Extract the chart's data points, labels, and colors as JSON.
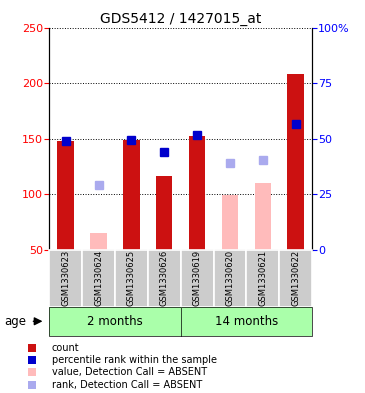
{
  "title": "GDS5412 / 1427015_at",
  "samples": [
    "GSM1330623",
    "GSM1330624",
    "GSM1330625",
    "GSM1330626",
    "GSM1330619",
    "GSM1330620",
    "GSM1330621",
    "GSM1330622"
  ],
  "groups": [
    {
      "label": "2 months",
      "span": [
        0,
        3
      ]
    },
    {
      "label": "14 months",
      "span": [
        4,
        7
      ]
    }
  ],
  "count_values": [
    148,
    null,
    149,
    116,
    152,
    null,
    null,
    208
  ],
  "count_absent_values": [
    null,
    65,
    null,
    null,
    null,
    99,
    110,
    null
  ],
  "rank_values": [
    148,
    null,
    149,
    138,
    153,
    null,
    null,
    163
  ],
  "rank_absent_values": [
    null,
    108,
    null,
    null,
    null,
    128,
    131,
    null
  ],
  "ylim_left": [
    50,
    250
  ],
  "ylim_right": [
    0,
    100
  ],
  "yticks_left": [
    50,
    100,
    150,
    200,
    250
  ],
  "yticks_right": [
    0,
    25,
    50,
    75,
    100
  ],
  "ytick_labels_right": [
    "0",
    "25",
    "50",
    "75",
    "100%"
  ],
  "bar_color_present": "#cc1111",
  "bar_color_absent": "#ffbbbb",
  "rank_color_present": "#0000cc",
  "rank_color_absent": "#aaaaee",
  "group_bg_color": "#aaffaa",
  "sample_bg_color": "#cccccc",
  "bar_width": 0.5,
  "rank_marker_size": 6,
  "legend_items": [
    {
      "color": "#cc1111",
      "label": "count"
    },
    {
      "color": "#0000cc",
      "label": "percentile rank within the sample"
    },
    {
      "color": "#ffbbbb",
      "label": "value, Detection Call = ABSENT"
    },
    {
      "color": "#aaaaee",
      "label": "rank, Detection Call = ABSENT"
    }
  ]
}
